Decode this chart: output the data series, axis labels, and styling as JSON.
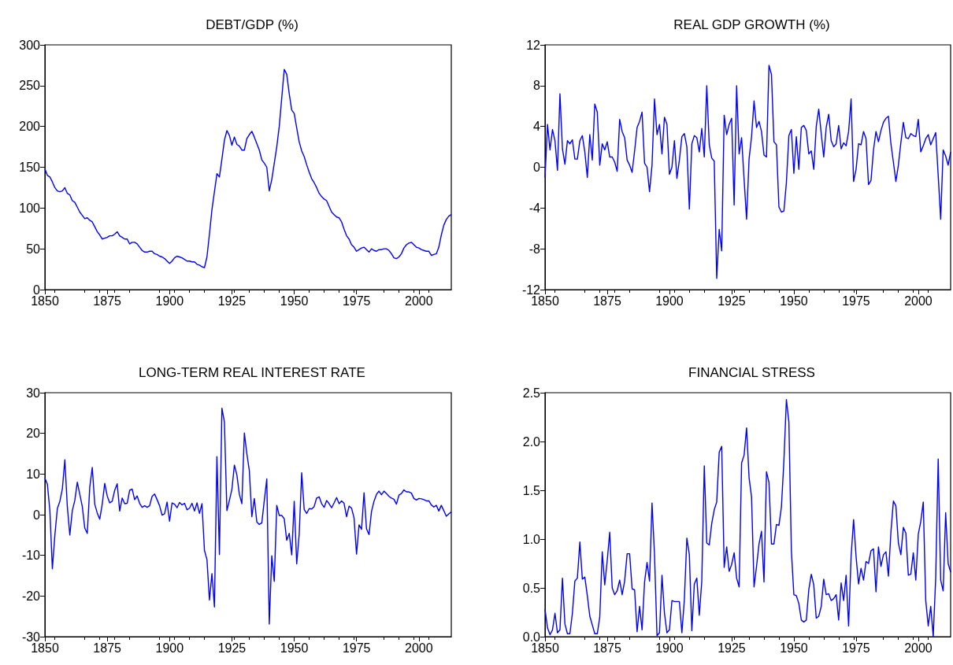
{
  "chart_data": [
    {
      "type": "line",
      "title": "DEBT/GDP (%)",
      "xlim": [
        1850,
        2013
      ],
      "xticks": [
        1850,
        1875,
        1900,
        1925,
        1950,
        1975,
        2000
      ],
      "ylim": [
        0,
        300
      ],
      "yticks": [
        0,
        50,
        100,
        150,
        200,
        250,
        300
      ],
      "marker": "none",
      "x": [
        1850,
        1851,
        1852,
        1853,
        1854,
        1855,
        1856,
        1857,
        1858,
        1859,
        1860,
        1861,
        1862,
        1863,
        1864,
        1865,
        1866,
        1867,
        1868,
        1869,
        1870,
        1871,
        1872,
        1873,
        1874,
        1875,
        1876,
        1877,
        1878,
        1879,
        1880,
        1881,
        1882,
        1883,
        1884,
        1885,
        1886,
        1887,
        1888,
        1889,
        1890,
        1891,
        1892,
        1893,
        1894,
        1895,
        1896,
        1897,
        1898,
        1899,
        1900,
        1901,
        1902,
        1903,
        1904,
        1905,
        1906,
        1907,
        1908,
        1909,
        1910,
        1911,
        1912,
        1913,
        1914,
        1915,
        1916,
        1917,
        1918,
        1919,
        1920,
        1921,
        1922,
        1923,
        1924,
        1925,
        1926,
        1927,
        1928,
        1929,
        1930,
        1931,
        1932,
        1933,
        1934,
        1935,
        1936,
        1937,
        1938,
        1939,
        1940,
        1941,
        1942,
        1943,
        1944,
        1945,
        1946,
        1947,
        1948,
        1949,
        1950,
        1951,
        1952,
        1953,
        1954,
        1955,
        1956,
        1957,
        1958,
        1959,
        1960,
        1961,
        1962,
        1963,
        1964,
        1965,
        1966,
        1967,
        1968,
        1969,
        1970,
        1971,
        1972,
        1973,
        1974,
        1975,
        1976,
        1977,
        1978,
        1979,
        1980,
        1981,
        1982,
        1983,
        1984,
        1985,
        1986,
        1987,
        1988,
        1989,
        1990,
        1991,
        1992,
        1993,
        1994,
        1995,
        1996,
        1997,
        1998,
        1999,
        2000,
        2001,
        2002,
        2003,
        2004,
        2005,
        2006,
        2007,
        2008,
        2009,
        2010,
        2011,
        2012,
        2013
      ],
      "series": [
        {
          "color": "#0000ff",
          "values": [
            148,
            140,
            138,
            132,
            125,
            121,
            120,
            121,
            125,
            118,
            116,
            109,
            107,
            101,
            95,
            91,
            87,
            88,
            85,
            83,
            77,
            71,
            67,
            62,
            63,
            64,
            66,
            66,
            68,
            71,
            66,
            64,
            62,
            62,
            56,
            58,
            58,
            56,
            52,
            48,
            46,
            46,
            47,
            47,
            44,
            43,
            41,
            40,
            38,
            35,
            32,
            35,
            39,
            41,
            40,
            39,
            37,
            35,
            35,
            34,
            34,
            31,
            30,
            28,
            27,
            40,
            68,
            98,
            120,
            142,
            138,
            160,
            183,
            195,
            189,
            177,
            187,
            178,
            176,
            171,
            171,
            185,
            190,
            194,
            187,
            179,
            171,
            159,
            155,
            150,
            121,
            135,
            155,
            175,
            200,
            235,
            270,
            264,
            240,
            220,
            216,
            198,
            181,
            170,
            163,
            153,
            144,
            136,
            131,
            125,
            118,
            114,
            111,
            109,
            102,
            95,
            92,
            89,
            88,
            83,
            74,
            66,
            62,
            55,
            52,
            47,
            49,
            51,
            52,
            49,
            46,
            50,
            48,
            47,
            49,
            49,
            50,
            50,
            48,
            44,
            39,
            38,
            40,
            44,
            51,
            55,
            57,
            58,
            55,
            52,
            51,
            49,
            48,
            47,
            47,
            42,
            43,
            44,
            52,
            67,
            79,
            86,
            90,
            92
          ]
        }
      ]
    },
    {
      "type": "line",
      "title": "REAL GDP GROWTH (%)",
      "xlim": [
        1850,
        2013
      ],
      "xticks": [
        1850,
        1875,
        1900,
        1925,
        1950,
        1975,
        2000
      ],
      "ylim": [
        -12,
        12
      ],
      "yticks": [
        -12,
        -8,
        -4,
        0,
        4,
        8,
        12
      ],
      "marker": "none",
      "x": [
        1850,
        1851,
        1852,
        1853,
        1854,
        1855,
        1856,
        1857,
        1858,
        1859,
        1860,
        1861,
        1862,
        1863,
        1864,
        1865,
        1866,
        1867,
        1868,
        1869,
        1870,
        1871,
        1872,
        1873,
        1874,
        1875,
        1876,
        1877,
        1878,
        1879,
        1880,
        1881,
        1882,
        1883,
        1884,
        1885,
        1886,
        1887,
        1888,
        1889,
        1890,
        1891,
        1892,
        1893,
        1894,
        1895,
        1896,
        1897,
        1898,
        1899,
        1900,
        1901,
        1902,
        1903,
        1904,
        1905,
        1906,
        1907,
        1908,
        1909,
        1910,
        1911,
        1912,
        1913,
        1914,
        1915,
        1916,
        1917,
        1918,
        1919,
        1920,
        1921,
        1922,
        1923,
        1924,
        1925,
        1926,
        1927,
        1928,
        1929,
        1930,
        1931,
        1932,
        1933,
        1934,
        1935,
        1936,
        1937,
        1938,
        1939,
        1940,
        1941,
        1942,
        1943,
        1944,
        1945,
        1946,
        1947,
        1948,
        1949,
        1950,
        1951,
        1952,
        1953,
        1954,
        1955,
        1956,
        1957,
        1958,
        1959,
        1960,
        1961,
        1962,
        1963,
        1964,
        1965,
        1966,
        1967,
        1968,
        1969,
        1970,
        1971,
        1972,
        1973,
        1974,
        1975,
        1976,
        1977,
        1978,
        1979,
        1980,
        1981,
        1982,
        1983,
        1984,
        1985,
        1986,
        1987,
        1988,
        1989,
        1990,
        1991,
        1992,
        1993,
        1994,
        1995,
        1996,
        1997,
        1998,
        1999,
        2000,
        2001,
        2002,
        2003,
        2004,
        2005,
        2006,
        2007,
        2008,
        2009,
        2010,
        2011,
        2012,
        2013
      ],
      "series": [
        {
          "color": "#0000ff",
          "values": [
            -1,
            4.2,
            1.7,
            3.7,
            2.6,
            -0.3,
            7.2,
            1.8,
            0.3,
            2.6,
            2.3,
            2.7,
            0.8,
            0.8,
            2.6,
            3.1,
            1.5,
            -1,
            3.2,
            0.7,
            6.2,
            5.4,
            0.2,
            2.3,
            1.7,
            2.5,
            1,
            1,
            0.5,
            -0.4,
            4.7,
            3.5,
            2.9,
            0.7,
            0.2,
            -0.5,
            1.6,
            3.9,
            4.5,
            5.4,
            0.4,
            0,
            -2.4,
            0.2,
            6.7,
            3.2,
            4.2,
            1.3,
            4.9,
            4.2,
            -0.7,
            0,
            2.6,
            -1.1,
            0.7,
            3,
            3.3,
            2,
            -4.1,
            2.3,
            3.1,
            2.9,
            1.5,
            3.8,
            1,
            8,
            2.2,
            0.9,
            0.6,
            -10.9,
            -6.1,
            -8.2,
            5.1,
            3.2,
            4.2,
            4.8,
            -3.7,
            8,
            1.3,
            2.9,
            -1.2,
            -5.1,
            0.8,
            3,
            6.5,
            3.9,
            4.5,
            3.5,
            1.2,
            1,
            10,
            9.1,
            2.5,
            2.2,
            -3.9,
            -4.4,
            -4.3,
            -1.5,
            3.1,
            3.7,
            -0.6,
            3,
            -0.2,
            3.9,
            4.1,
            3.6,
            1.3,
            1.6,
            -0.2,
            4,
            5.7,
            3.3,
            1,
            3.9,
            5.2,
            2.6,
            2,
            2.3,
            4.1,
            1.8,
            2.4,
            2.1,
            3.5,
            6.7,
            -1.4,
            -0.2,
            2.3,
            2.2,
            3.5,
            2.8,
            -1.7,
            -1.3,
            1.7,
            3.5,
            2.5,
            3.6,
            4.4,
            4.8,
            5,
            2.3,
            0.5,
            -1.4,
            0.2,
            2.4,
            4.4,
            2.9,
            2.8,
            3.3,
            3.1,
            3,
            4.7,
            1.5,
            2.1,
            2.8,
            3.2,
            2.2,
            2.8,
            3.4,
            -0.8,
            -5.1,
            1.7,
            1.1,
            0.2,
            1.5
          ]
        }
      ]
    },
    {
      "type": "line",
      "title": "LONG-TERM REAL INTEREST RATE",
      "xlim": [
        1850,
        2013
      ],
      "xticks": [
        1850,
        1875,
        1900,
        1925,
        1950,
        1975,
        2000
      ],
      "ylim": [
        -30,
        30
      ],
      "yticks": [
        -30,
        -20,
        -10,
        0,
        10,
        20,
        30
      ],
      "marker": "none",
      "x": [
        1850,
        1851,
        1852,
        1853,
        1854,
        1855,
        1856,
        1857,
        1858,
        1859,
        1860,
        1861,
        1862,
        1863,
        1864,
        1865,
        1866,
        1867,
        1868,
        1869,
        1870,
        1871,
        1872,
        1873,
        1874,
        1875,
        1876,
        1877,
        1878,
        1879,
        1880,
        1881,
        1882,
        1883,
        1884,
        1885,
        1886,
        1887,
        1888,
        1889,
        1890,
        1891,
        1892,
        1893,
        1894,
        1895,
        1896,
        1897,
        1898,
        1899,
        1900,
        1901,
        1902,
        1903,
        1904,
        1905,
        1906,
        1907,
        1908,
        1909,
        1910,
        1911,
        1912,
        1913,
        1914,
        1915,
        1916,
        1917,
        1918,
        1919,
        1920,
        1921,
        1922,
        1923,
        1924,
        1925,
        1926,
        1927,
        1928,
        1929,
        1930,
        1931,
        1932,
        1933,
        1934,
        1935,
        1936,
        1937,
        1938,
        1939,
        1940,
        1941,
        1942,
        1943,
        1944,
        1945,
        1946,
        1947,
        1948,
        1949,
        1950,
        1951,
        1952,
        1953,
        1954,
        1955,
        1956,
        1957,
        1958,
        1959,
        1960,
        1961,
        1962,
        1963,
        1964,
        1965,
        1966,
        1967,
        1968,
        1969,
        1970,
        1971,
        1972,
        1973,
        1974,
        1975,
        1976,
        1977,
        1978,
        1979,
        1980,
        1981,
        1982,
        1983,
        1984,
        1985,
        1986,
        1987,
        1988,
        1989,
        1990,
        1991,
        1992,
        1993,
        1994,
        1995,
        1996,
        1997,
        1998,
        1999,
        2000,
        2001,
        2002,
        2003,
        2004,
        2005,
        2006,
        2007,
        2008,
        2009,
        2010,
        2011,
        2012,
        2013
      ],
      "series": [
        {
          "color": "#0000ff",
          "values": [
            9,
            7.5,
            1,
            -13.3,
            -5,
            1.5,
            3.3,
            6.3,
            13.5,
            2,
            -5,
            1,
            3.5,
            8,
            5,
            2,
            -3.3,
            -4.6,
            6.8,
            11.6,
            2.6,
            0.4,
            -1.1,
            2.6,
            7.7,
            4.6,
            2.9,
            3.3,
            6,
            7.6,
            0.9,
            4.1,
            2.7,
            2.8,
            6,
            6.3,
            3.7,
            4.6,
            2.8,
            1.8,
            2.2,
            1.8,
            2.2,
            4.5,
            5.1,
            3.7,
            2.2,
            -0.1,
            0.2,
            3.1,
            -1.6,
            2.9,
            2.6,
            1.7,
            3,
            2.4,
            2.8,
            1.2,
            1.6,
            2.8,
            0.9,
            2.9,
            0.3,
            2.7,
            -8.8,
            -11,
            -21,
            -14.5,
            -22.7,
            14.3,
            -9.8,
            26.2,
            22.8,
            1,
            3.5,
            6.2,
            12.2,
            9.8,
            5,
            2.7,
            20.1,
            15,
            10.8,
            -0.5,
            4,
            -1.8,
            -2.4,
            -2,
            3.5,
            8.8,
            -26.9,
            -10.1,
            -16.4,
            2.3,
            -0.2,
            -0.2,
            -1,
            -6.3,
            -4.6,
            -9.9,
            3.3,
            -12.1,
            -4.8,
            10.3,
            1.3,
            0.3,
            1.5,
            1.4,
            2,
            4.1,
            4.4,
            2.7,
            1.8,
            3.5,
            2.7,
            1.7,
            2.9,
            4.2,
            2.7,
            3.4,
            2.8,
            -0.5,
            2.1,
            1.6,
            -0.8,
            -9.7,
            -2.5,
            -3.6,
            5.4,
            -3.5,
            -4.9,
            0.8,
            3.3,
            5,
            5.8,
            4.9,
            5.8,
            5.2,
            4.5,
            4.1,
            3.8,
            2.6,
            4.8,
            5.2,
            6.1,
            5.6,
            5.6,
            5.3,
            4,
            3.6,
            4,
            3.9,
            3.7,
            3.4,
            3.4,
            2.4,
            1.9,
            2.3,
            0.9,
            2.3,
            1,
            -0.4,
            0.2,
            0.7
          ]
        }
      ]
    },
    {
      "type": "line",
      "title": "FINANCIAL STRESS",
      "xlim": [
        1850,
        2013
      ],
      "xticks": [
        1850,
        1875,
        1900,
        1925,
        1950,
        1975,
        2000
      ],
      "ylim": [
        0,
        2.5
      ],
      "yticks": [
        {
          "value": 0,
          "label": "0.0"
        },
        0.5,
        {
          "value": 1,
          "label": "1.0"
        },
        1.5,
        {
          "value": 2,
          "label": "2.0"
        },
        2.5
      ],
      "marker": "none",
      "x": [
        1850,
        1851,
        1852,
        1853,
        1854,
        1855,
        1856,
        1857,
        1858,
        1859,
        1860,
        1861,
        1862,
        1863,
        1864,
        1865,
        1866,
        1867,
        1868,
        1869,
        1870,
        1871,
        1872,
        1873,
        1874,
        1875,
        1876,
        1877,
        1878,
        1879,
        1880,
        1881,
        1882,
        1883,
        1884,
        1885,
        1886,
        1887,
        1888,
        1889,
        1890,
        1891,
        1892,
        1893,
        1894,
        1895,
        1896,
        1897,
        1898,
        1899,
        1900,
        1901,
        1902,
        1903,
        1904,
        1905,
        1906,
        1907,
        1908,
        1909,
        1910,
        1911,
        1912,
        1913,
        1914,
        1915,
        1916,
        1917,
        1918,
        1919,
        1920,
        1921,
        1922,
        1923,
        1924,
        1925,
        1926,
        1927,
        1928,
        1929,
        1930,
        1931,
        1932,
        1933,
        1934,
        1935,
        1936,
        1937,
        1938,
        1939,
        1940,
        1941,
        1942,
        1943,
        1944,
        1945,
        1946,
        1947,
        1948,
        1949,
        1950,
        1951,
        1952,
        1953,
        1954,
        1955,
        1956,
        1957,
        1958,
        1959,
        1960,
        1961,
        1962,
        1963,
        1964,
        1965,
        1966,
        1967,
        1968,
        1969,
        1970,
        1971,
        1972,
        1973,
        1974,
        1975,
        1976,
        1977,
        1978,
        1979,
        1980,
        1981,
        1982,
        1983,
        1984,
        1985,
        1986,
        1987,
        1988,
        1989,
        1990,
        1991,
        1992,
        1993,
        1994,
        1995,
        1996,
        1997,
        1998,
        1999,
        2000,
        2001,
        2002,
        2003,
        2004,
        2005,
        2006,
        2007,
        2008,
        2009,
        2010,
        2011,
        2012,
        2013
      ],
      "series": [
        {
          "color": "#0000ff",
          "values": [
            0.28,
            0.09,
            0.02,
            0.07,
            0.24,
            0.04,
            0.07,
            0.6,
            0.13,
            0.03,
            0.03,
            0.24,
            0.57,
            0.6,
            0.97,
            0.59,
            0.61,
            0.42,
            0.21,
            0.12,
            0.03,
            0.03,
            0.2,
            0.87,
            0.53,
            0.78,
            1.07,
            0.5,
            0.43,
            0.47,
            0.58,
            0.43,
            0.57,
            0.85,
            0.85,
            0.49,
            0.48,
            0.05,
            0.31,
            0.07,
            0.56,
            0.76,
            0.57,
            1.37,
            0.84,
            0.01,
            0.04,
            0.63,
            0.24,
            0.04,
            0.07,
            0.37,
            0.36,
            0.36,
            0.36,
            0.04,
            0.38,
            1.01,
            0.84,
            0.06,
            0.54,
            0.6,
            0.22,
            0.57,
            1.75,
            0.96,
            0.94,
            1.16,
            1.3,
            1.38,
            1.89,
            1.95,
            0.71,
            0.92,
            0.67,
            0.74,
            0.86,
            0.6,
            0.51,
            1.78,
            1.86,
            2.14,
            1.63,
            1.43,
            0.51,
            0.72,
            0.95,
            1.08,
            0.56,
            1.69,
            1.58,
            0.95,
            0.95,
            1.15,
            1.14,
            1.33,
            1.8,
            2.43,
            2.2,
            0.88,
            0.43,
            0.42,
            0.34,
            0.17,
            0.15,
            0.17,
            0.48,
            0.64,
            0.53,
            0.19,
            0.21,
            0.31,
            0.59,
            0.43,
            0.44,
            0.37,
            0.39,
            0.43,
            0.17,
            0.55,
            0.37,
            0.63,
            0.11,
            0.82,
            1.2,
            0.82,
            0.54,
            0.7,
            0.58,
            0.77,
            0.75,
            0.88,
            0.9,
            0.46,
            0.92,
            0.72,
            0.84,
            0.87,
            0.62,
            1.07,
            1.39,
            1.34,
            0.96,
            0.84,
            1.12,
            1.06,
            0.63,
            0.64,
            0.86,
            0.58,
            1.05,
            1.18,
            1.38,
            0.37,
            0.11,
            0.31,
            0,
            0.6,
            1.82,
            0.58,
            0.47,
            1.27,
            0.75,
            0.66
          ]
        }
      ]
    }
  ]
}
